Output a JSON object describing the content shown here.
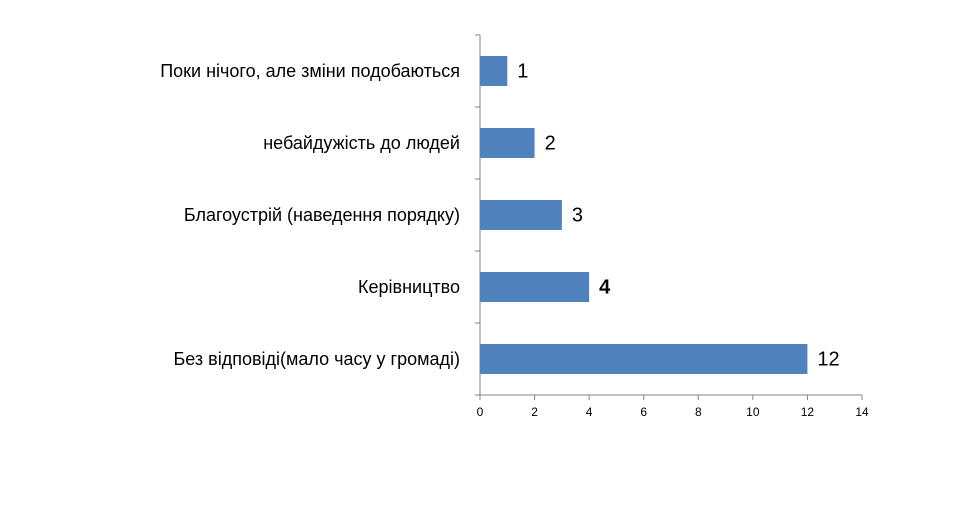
{
  "chart_data": {
    "type": "barh",
    "categories": [
      "Поки нічого, але зміни подобаються",
      "небайдужість до людей",
      "Благоустрій (наведення порядку)",
      "Керівництво",
      "Без відповіді(мало часу у громаді)"
    ],
    "values": [
      1,
      2,
      3,
      4,
      12
    ],
    "value_label_bold": [
      false,
      false,
      false,
      true,
      false
    ],
    "color": "#4f81bd",
    "xlim": [
      0,
      14
    ],
    "xticks": [
      0,
      2,
      4,
      6,
      8,
      10,
      12,
      14
    ]
  }
}
